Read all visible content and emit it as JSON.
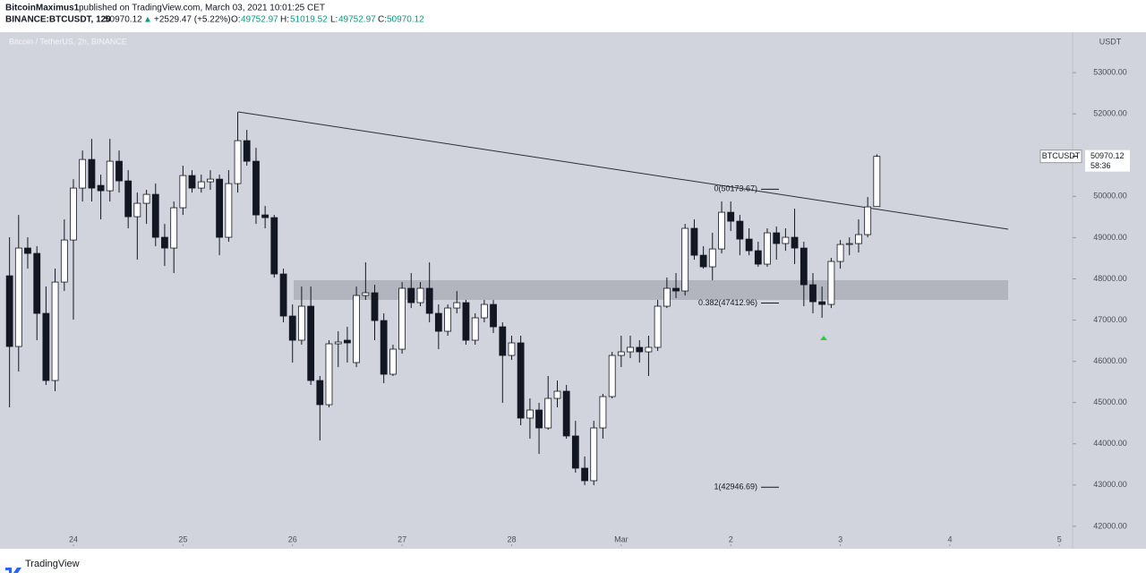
{
  "header": {
    "author": "BitcoinMaximus1",
    "published": "published on TradingView.com, March 03, 2021 10:01:25 CET",
    "symbol": "BINANCE:BTCUSDT, 120",
    "arrow": "▲",
    "change": "+2529.47 (+5.22%)",
    "o_label": "O:",
    "h_label": "H:",
    "l_label": "L:",
    "c_label": "C:"
  },
  "footer": {
    "brand": "TradingView"
  },
  "chart_data": {
    "type": "candlestick",
    "title": "Bitcoin / TetherUS, 2h, BINANCE",
    "y_unit": "USDT",
    "price_tag": "BTCUSDT",
    "countdown": "58:36",
    "colors": {
      "up": "#ffffff",
      "down": "#131722",
      "wick": "#131722",
      "zone": "#b2b5be",
      "trendline": "#2a2e39",
      "signal": "#2ecc40"
    },
    "x": [
      23.417,
      23.5,
      23.583,
      23.667,
      23.75,
      23.833,
      23.917,
      24,
      24.083,
      24.167,
      24.25,
      24.333,
      24.417,
      24.5,
      24.583,
      24.667,
      24.75,
      24.833,
      24.917,
      25,
      25.083,
      25.167,
      25.25,
      25.333,
      25.417,
      25.5,
      25.583,
      25.667,
      25.75,
      25.833,
      25.917,
      26,
      26.083,
      26.167,
      26.25,
      26.333,
      26.417,
      26.5,
      26.583,
      26.667,
      26.75,
      26.833,
      26.917,
      27,
      27.083,
      27.167,
      27.25,
      27.333,
      27.417,
      27.5,
      27.583,
      27.667,
      27.75,
      27.833,
      27.917,
      28,
      28.083,
      28.167,
      28.25,
      28.333,
      28.417,
      28.5,
      28.583,
      28.667,
      28.75,
      28.833,
      28.917,
      29,
      29.083,
      29.167,
      29.25,
      29.333,
      29.417,
      29.5,
      29.583,
      29.667,
      29.75,
      29.833,
      29.917,
      30,
      30.083,
      30.167,
      30.25,
      30.333,
      30.417,
      30.5,
      30.583,
      30.667,
      30.75,
      30.833,
      30.917,
      31,
      31.083,
      31.167,
      31.25,
      31.333
    ],
    "open": [
      48074,
      46360,
      48747,
      48617,
      47163,
      45535,
      47922,
      48942,
      50201,
      50895,
      50266,
      50136,
      50852,
      50375,
      49507,
      49832,
      50049,
      49008,
      48747,
      49724,
      50505,
      50201,
      50353,
      50418,
      49008,
      50310,
      51351,
      50852,
      49550,
      49485,
      48118,
      47098,
      46512,
      47337,
      45535,
      44949,
      46425,
      46512,
      45970,
      47597,
      47662,
      46989,
      45687,
      46295,
      47771,
      47423,
      47771,
      47163,
      46729,
      47293,
      47423,
      46512,
      47055,
      47380,
      46837,
      46143,
      46447,
      44624,
      44819,
      44385,
      45101,
      45275,
      44190,
      43409,
      43105,
      44385,
      45145,
      46143,
      46230,
      46339,
      46230,
      46339,
      47337,
      47771,
      47706,
      49225,
      48573,
      48292,
      48725,
      49615,
      49398,
      48964,
      48682,
      48357,
      49116,
      48856,
      49008,
      48747,
      47857,
      47445,
      47380,
      48422,
      48834,
      48856,
      49073,
      49752.97
    ],
    "high": [
      49008,
      49550,
      49008,
      48791,
      47814,
      48248,
      49442,
      50418,
      51112,
      51394,
      50527,
      51394,
      51112,
      50635,
      50092,
      50158,
      50310,
      49333,
      49876,
      50744,
      50635,
      50527,
      50635,
      50527,
      50635,
      52045,
      51612,
      51178,
      49767,
      49550,
      48248,
      47380,
      47814,
      47814,
      45644,
      46512,
      46729,
      46837,
      47814,
      48400,
      47857,
      47163,
      46404,
      47922,
      48140,
      47922,
      48400,
      47380,
      47380,
      47706,
      47489,
      47163,
      47489,
      47489,
      46946,
      46621,
      46621,
      45101,
      44993,
      45644,
      45535,
      45427,
      44557,
      43691,
      44557,
      45210,
      46230,
      46621,
      46621,
      46512,
      46621,
      47489,
      48031,
      48140,
      49333,
      49442,
      48791,
      49116,
      49876,
      49876,
      49550,
      49225,
      48899,
      49225,
      49268,
      49225,
      49702,
      48899,
      48140,
      47814,
      48508,
      48942,
      49008,
      49442,
      49984,
      51019.52
    ],
    "low": [
      44884,
      45752,
      48248,
      46512,
      45427,
      45275,
      47706,
      47011,
      49876,
      49876,
      49442,
      49876,
      50092,
      49225,
      48465,
      49333,
      48791,
      48313,
      48140,
      49550,
      50092,
      50092,
      50158,
      48573,
      48899,
      50092,
      50744,
      49333,
      49225,
      48031,
      46946,
      45970,
      46404,
      45427,
      44082,
      44884,
      45861,
      45970,
      45861,
      47489,
      46512,
      45470,
      45644,
      46186,
      47293,
      47337,
      46946,
      46295,
      46621,
      47163,
      46404,
      46404,
      46946,
      46686,
      44993,
      46035,
      44450,
      44125,
      43756,
      44342,
      44884,
      44125,
      43300,
      42997,
      42997,
      44125,
      45101,
      45861,
      46078,
      45970,
      45644,
      46252,
      47293,
      47532,
      47597,
      48465,
      48248,
      47966,
      48617,
      49159,
      48573,
      48573,
      48292,
      48292,
      48465,
      48682,
      48357,
      47337,
      47163,
      47055,
      47293,
      48248,
      48573,
      48639,
      49008,
      49752.97
    ],
    "close": [
      46360,
      48747,
      48617,
      47163,
      45535,
      47922,
      48942,
      50201,
      50895,
      50201,
      50136,
      50852,
      50375,
      49507,
      49832,
      50049,
      49008,
      48747,
      49724,
      50505,
      50201,
      50353,
      50418,
      49008,
      50310,
      51351,
      50852,
      49550,
      49485,
      48118,
      47098,
      46512,
      47337,
      45535,
      44949,
      46425,
      46469,
      46447,
      47597,
      47662,
      46989,
      45687,
      46295,
      47771,
      47423,
      47771,
      47163,
      46729,
      47293,
      47423,
      46512,
      47055,
      47380,
      46837,
      46143,
      46447,
      44624,
      44819,
      44385,
      45101,
      45275,
      44190,
      43409,
      43105,
      44385,
      45145,
      46143,
      46230,
      46339,
      46230,
      46339,
      47337,
      47771,
      47706,
      49225,
      48573,
      48292,
      48725,
      49615,
      49398,
      48964,
      48682,
      48357,
      49116,
      48856,
      49008,
      48747,
      47857,
      47445,
      47380,
      48422,
      48834,
      48856,
      49073,
      49745,
      50970.12
    ],
    "fib_levels": [
      {
        "value": 50173.67,
        "label": "0(50173.67)"
      },
      {
        "value": 47412.96,
        "label": "0.382(47412.96)"
      },
      {
        "value": 42946.69,
        "label": "1(42946.69)"
      }
    ],
    "xlim": [
      23.33,
      33.12
    ],
    "ylim": [
      41520,
      53980
    ],
    "xticks": [
      24,
      25,
      26,
      27,
      28,
      {
        "value": 29,
        "label": "Mar"
      },
      {
        "value": 30,
        "label": "2"
      },
      {
        "value": 31,
        "label": "3"
      },
      {
        "value": 32,
        "label": "4"
      },
      {
        "value": 33,
        "label": "5"
      }
    ],
    "yticks": [
      {
        "value": 42000,
        "label": "42000.00"
      },
      {
        "value": 43000,
        "label": "43000.00"
      },
      {
        "value": 44000,
        "label": "44000.00"
      },
      {
        "value": 45000,
        "label": "45000.00"
      },
      {
        "value": 46000,
        "label": "46000.00"
      },
      {
        "value": 47000,
        "label": "47000.00"
      },
      {
        "value": 48000,
        "label": "48000.00"
      },
      {
        "value": 49000,
        "label": "49000.00"
      },
      {
        "value": 50000,
        "label": "50000.00"
      },
      {
        "value": 51000,
        "label": "51000.00"
      },
      {
        "value": 52000,
        "label": "52000.00"
      },
      {
        "value": 53000,
        "label": "53000.00"
      }
    ],
    "grid": false
  }
}
